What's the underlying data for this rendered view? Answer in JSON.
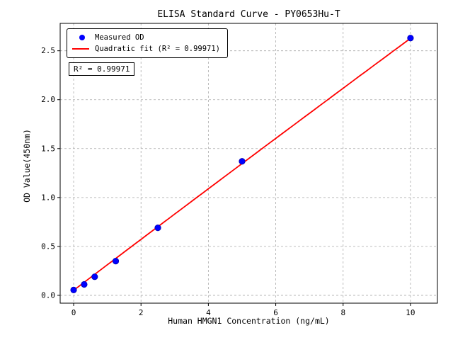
{
  "chart_data": {
    "type": "scatter",
    "title": "ELISA Standard Curve - PY0653Hu-T",
    "xlabel": "Human HMGN1 Concentration (ng/mL)",
    "ylabel": "OD Value(450nm)",
    "xlim": [
      -0.4,
      10.8
    ],
    "ylim": [
      -0.08,
      2.78
    ],
    "xticks": [
      0,
      2,
      4,
      6,
      8,
      10
    ],
    "xtick_labels": [
      "0",
      "2",
      "4",
      "6",
      "8",
      "10"
    ],
    "yticks": [
      0.0,
      0.5,
      1.0,
      1.5,
      2.0,
      2.5
    ],
    "ytick_labels": [
      "0.0",
      "0.5",
      "1.0",
      "1.5",
      "2.0",
      "2.5"
    ],
    "grid": true,
    "grid_style": "dashed",
    "legend_position": "upper-left",
    "annotation": "R² = 0.99971",
    "r_squared": 0.99971,
    "series": [
      {
        "name": "Measured OD",
        "type": "scatter",
        "color": "#0000ff",
        "x": [
          0,
          0.313,
          0.625,
          1.25,
          2.5,
          5,
          10
        ],
        "y": [
          0.055,
          0.112,
          0.19,
          0.35,
          0.69,
          1.37,
          2.63
        ]
      },
      {
        "name": "Quadratic fit (R² = 0.99971)",
        "type": "line",
        "color": "#ff0000",
        "fit": {
          "kind": "quadratic",
          "a": -0.0003,
          "b": 0.2605,
          "c": 0.052,
          "x_range": [
            0,
            10
          ]
        }
      }
    ],
    "colors": {
      "points": "#0000ff",
      "fit_line": "#ff0000",
      "grid": "#aaaaaa",
      "axes": "#000000"
    }
  }
}
